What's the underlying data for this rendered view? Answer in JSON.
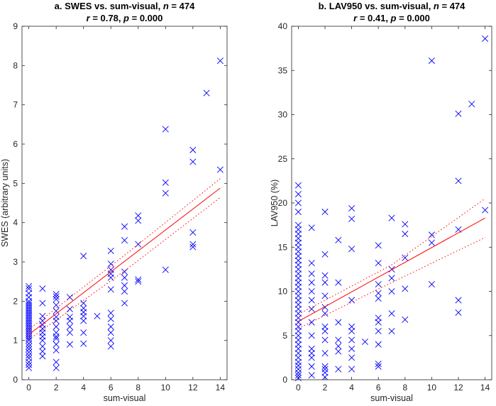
{
  "colors": {
    "marker": "#0000ff",
    "fit": "#ff0000",
    "axis": "#262626"
  },
  "chart_data": [
    {
      "type": "scatter",
      "title": [
        "a. SWES vs. sum-visual, ",
        "n",
        " = 474"
      ],
      "subtitle": [
        "r",
        " = 0.78, ",
        "p",
        " = 0.000"
      ],
      "xlabel": "sum-visual",
      "ylabel": "SWES (arbitrary units)",
      "xlim": [
        -0.5,
        14.5
      ],
      "ylim": [
        0,
        9
      ],
      "xticks": [
        "0",
        "2",
        "4",
        "6",
        "8",
        "10",
        "12",
        "14"
      ],
      "yticks": [
        "0",
        "1",
        "2",
        "3",
        "4",
        "5",
        "6",
        "7",
        "8",
        "9"
      ],
      "marker": "x",
      "fit": {
        "x": [
          0,
          14
        ],
        "y": [
          1.15,
          4.88
        ]
      },
      "ci_upper": {
        "x": [
          0,
          7,
          14
        ],
        "y": [
          1.28,
          3.17,
          5.12
        ]
      },
      "ci_lower": {
        "x": [
          0,
          7,
          14
        ],
        "y": [
          1.02,
          2.77,
          4.64
        ]
      },
      "points": [
        [
          0,
          0.3
        ],
        [
          0,
          0.38
        ],
        [
          0,
          0.45
        ],
        [
          0,
          0.55
        ],
        [
          0,
          0.62
        ],
        [
          0,
          0.7
        ],
        [
          0,
          0.78
        ],
        [
          0,
          0.85
        ],
        [
          0,
          0.92
        ],
        [
          0,
          1.0
        ],
        [
          0,
          1.05
        ],
        [
          0,
          1.1
        ],
        [
          0,
          1.15
        ],
        [
          0,
          1.2
        ],
        [
          0,
          1.25
        ],
        [
          0,
          1.3
        ],
        [
          0,
          1.35
        ],
        [
          0,
          1.4
        ],
        [
          0,
          1.45
        ],
        [
          0,
          1.5
        ],
        [
          0,
          1.55
        ],
        [
          0,
          1.6
        ],
        [
          0,
          1.65
        ],
        [
          0,
          1.7
        ],
        [
          0,
          1.75
        ],
        [
          0,
          1.8
        ],
        [
          0,
          1.85
        ],
        [
          0,
          1.9
        ],
        [
          0,
          1.95
        ],
        [
          0,
          2.0
        ],
        [
          0,
          2.1
        ],
        [
          0,
          2.2
        ],
        [
          0,
          2.32
        ],
        [
          0,
          2.38
        ],
        [
          1,
          0.6
        ],
        [
          1,
          0.72
        ],
        [
          1,
          0.85
        ],
        [
          1,
          1.0
        ],
        [
          1,
          1.1
        ],
        [
          1,
          1.2
        ],
        [
          1,
          1.3
        ],
        [
          1,
          1.4
        ],
        [
          1,
          1.5
        ],
        [
          1,
          1.62
        ],
        [
          1,
          1.95
        ],
        [
          1,
          2.32
        ],
        [
          2,
          0.3
        ],
        [
          2,
          0.45
        ],
        [
          2,
          0.75
        ],
        [
          2,
          0.9
        ],
        [
          2,
          1.05
        ],
        [
          2,
          1.1
        ],
        [
          2,
          1.2
        ],
        [
          2,
          1.35
        ],
        [
          2,
          1.5
        ],
        [
          2,
          1.6
        ],
        [
          2,
          1.75
        ],
        [
          2,
          1.9
        ],
        [
          2,
          2.05
        ],
        [
          2,
          2.12
        ],
        [
          2,
          2.18
        ],
        [
          3,
          0.9
        ],
        [
          3,
          1.2
        ],
        [
          3,
          1.35
        ],
        [
          3,
          1.5
        ],
        [
          3,
          1.6
        ],
        [
          3,
          1.8
        ],
        [
          3,
          2.1
        ],
        [
          4,
          0.92
        ],
        [
          4,
          1.2
        ],
        [
          4,
          1.5
        ],
        [
          4,
          1.62
        ],
        [
          4,
          1.72
        ],
        [
          4,
          1.82
        ],
        [
          4,
          1.95
        ],
        [
          4,
          3.15
        ],
        [
          5,
          1.62
        ],
        [
          6,
          0.85
        ],
        [
          6,
          1.0
        ],
        [
          6,
          1.2
        ],
        [
          6,
          1.35
        ],
        [
          6,
          1.55
        ],
        [
          6,
          1.7
        ],
        [
          6,
          2.3
        ],
        [
          6,
          2.6
        ],
        [
          6,
          2.7
        ],
        [
          6,
          2.8
        ],
        [
          6,
          2.95
        ],
        [
          6,
          3.28
        ],
        [
          7,
          1.95
        ],
        [
          7,
          2.25
        ],
        [
          7,
          2.4
        ],
        [
          7,
          2.6
        ],
        [
          7,
          2.75
        ],
        [
          7,
          3.55
        ],
        [
          7,
          3.9
        ],
        [
          8,
          2.5
        ],
        [
          8,
          2.55
        ],
        [
          8,
          3.45
        ],
        [
          8,
          4.05
        ],
        [
          8,
          4.18
        ],
        [
          10,
          2.8
        ],
        [
          10,
          4.75
        ],
        [
          10,
          5.02
        ],
        [
          10,
          6.38
        ],
        [
          12,
          3.38
        ],
        [
          12,
          3.45
        ],
        [
          12,
          3.75
        ],
        [
          12,
          5.55
        ],
        [
          12,
          5.85
        ],
        [
          13,
          7.3
        ],
        [
          14,
          5.35
        ],
        [
          14,
          8.12
        ]
      ]
    },
    {
      "type": "scatter",
      "title": [
        "b. LAV950 vs. sum-visual, ",
        "n",
        " = 474"
      ],
      "subtitle": [
        "r",
        " = 0.41, ",
        "p",
        " = 0.000"
      ],
      "xlabel": "sum-visual",
      "ylabel": "LAV950 (%)",
      "xlim": [
        -0.5,
        14.5
      ],
      "ylim": [
        0,
        40
      ],
      "xticks": [
        "0",
        "2",
        "4",
        "6",
        "8",
        "10",
        "12",
        "14"
      ],
      "yticks": [
        "0",
        "5",
        "10",
        "15",
        "20",
        "25",
        "30",
        "35",
        "40"
      ],
      "marker": "x",
      "fit": {
        "x": [
          0,
          14
        ],
        "y": [
          6.6,
          18.3
        ]
      },
      "ci_upper": {
        "x": [
          0,
          7,
          14
        ],
        "y": [
          7.4,
          13.0,
          20.5
        ]
      },
      "ci_lower": {
        "x": [
          0,
          7,
          14
        ],
        "y": [
          5.8,
          11.0,
          16.1
        ]
      },
      "points": [
        [
          0,
          0.2
        ],
        [
          0,
          0.5
        ],
        [
          0,
          0.8
        ],
        [
          0,
          1.2
        ],
        [
          0,
          1.6
        ],
        [
          0,
          2.0
        ],
        [
          0,
          2.5
        ],
        [
          0,
          3.0
        ],
        [
          0,
          3.5
        ],
        [
          0,
          4.0
        ],
        [
          0,
          4.5
        ],
        [
          0,
          5.0
        ],
        [
          0,
          5.5
        ],
        [
          0,
          6.0
        ],
        [
          0,
          6.5
        ],
        [
          0,
          7.0
        ],
        [
          0,
          7.5
        ],
        [
          0,
          8.0
        ],
        [
          0,
          8.5
        ],
        [
          0,
          9.0
        ],
        [
          0,
          9.5
        ],
        [
          0,
          10.0
        ],
        [
          0,
          10.5
        ],
        [
          0,
          11.0
        ],
        [
          0,
          11.5
        ],
        [
          0,
          12.0
        ],
        [
          0,
          12.5
        ],
        [
          0,
          13.0
        ],
        [
          0,
          13.5
        ],
        [
          0,
          14.0
        ],
        [
          0,
          14.5
        ],
        [
          0,
          15.0
        ],
        [
          0,
          15.5
        ],
        [
          0,
          16.0
        ],
        [
          0,
          16.5
        ],
        [
          0,
          17.0
        ],
        [
          0,
          17.5
        ],
        [
          0,
          19.0
        ],
        [
          0,
          20.0
        ],
        [
          0,
          21.0
        ],
        [
          0,
          22.0
        ],
        [
          1,
          0.5
        ],
        [
          1,
          1.5
        ],
        [
          1,
          2.5
        ],
        [
          1,
          3.0
        ],
        [
          1,
          3.5
        ],
        [
          1,
          5.0
        ],
        [
          1,
          6.5
        ],
        [
          1,
          8.0
        ],
        [
          1,
          9.0
        ],
        [
          1,
          10.0
        ],
        [
          1,
          11.0
        ],
        [
          1,
          12.0
        ],
        [
          1,
          13.2
        ],
        [
          1,
          17.2
        ],
        [
          2,
          0.3
        ],
        [
          2,
          0.8
        ],
        [
          2,
          1.2
        ],
        [
          2,
          1.5
        ],
        [
          2,
          3.0
        ],
        [
          2,
          4.5
        ],
        [
          2,
          5.5
        ],
        [
          2,
          6.0
        ],
        [
          2,
          7.5
        ],
        [
          2,
          8.2
        ],
        [
          2,
          9.5
        ],
        [
          2,
          11.0
        ],
        [
          2,
          11.8
        ],
        [
          2,
          14.2
        ],
        [
          2,
          19.0
        ],
        [
          3,
          1.2
        ],
        [
          3,
          3.2
        ],
        [
          3,
          3.8
        ],
        [
          3,
          4.5
        ],
        [
          3,
          6.5
        ],
        [
          3,
          11.0
        ],
        [
          3,
          15.8
        ],
        [
          4,
          1.2
        ],
        [
          4,
          2.5
        ],
        [
          4,
          3.5
        ],
        [
          4,
          4.5
        ],
        [
          4,
          5.5
        ],
        [
          4,
          6.0
        ],
        [
          4,
          9.0
        ],
        [
          4,
          14.8
        ],
        [
          4,
          18.2
        ],
        [
          4,
          19.4
        ],
        [
          5,
          4.3
        ],
        [
          6,
          1.5
        ],
        [
          6,
          1.8
        ],
        [
          6,
          4.0
        ],
        [
          6,
          5.5
        ],
        [
          6,
          6.5
        ],
        [
          6,
          7.0
        ],
        [
          6,
          9.2
        ],
        [
          6,
          9.8
        ],
        [
          6,
          10.8
        ],
        [
          6,
          13.2
        ],
        [
          6,
          15.2
        ],
        [
          7,
          5.5
        ],
        [
          7,
          7.5
        ],
        [
          7,
          10.0
        ],
        [
          7,
          11.5
        ],
        [
          7,
          12.5
        ],
        [
          7,
          18.3
        ],
        [
          8,
          6.8
        ],
        [
          8,
          10.3
        ],
        [
          8,
          13.8
        ],
        [
          8,
          16.5
        ],
        [
          8,
          17.6
        ],
        [
          10,
          10.8
        ],
        [
          10,
          15.5
        ],
        [
          10,
          16.4
        ],
        [
          10,
          36.1
        ],
        [
          12,
          7.6
        ],
        [
          12,
          9.0
        ],
        [
          12,
          17.0
        ],
        [
          12,
          22.5
        ],
        [
          12,
          30.1
        ],
        [
          13,
          31.2
        ],
        [
          14,
          19.2
        ],
        [
          14,
          38.6
        ]
      ]
    }
  ]
}
